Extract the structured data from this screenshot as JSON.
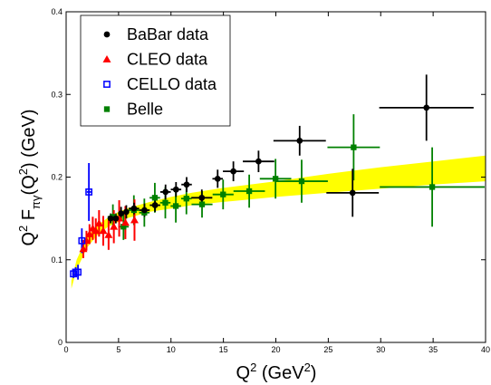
{
  "chart_data": {
    "type": "scatter",
    "xlabel": "Q2 (GeV2)",
    "ylabel": "Q2 Fπγ(Q2) (GeV)",
    "xlim": [
      0,
      40
    ],
    "ylim": [
      0,
      0.4
    ],
    "xticks": [
      "0",
      "5",
      "10",
      "15",
      "20",
      "25",
      "30",
      "35",
      "40"
    ],
    "yticks": [
      "0",
      "0.1",
      "0.2",
      "0.3",
      "0.4"
    ],
    "grid": false,
    "legend_position": "top-left",
    "band": {
      "color": "#ffff00",
      "x": [
        0.5,
        1,
        2,
        3,
        4,
        5,
        6,
        8,
        10,
        12,
        15,
        20,
        25,
        30,
        35,
        40
      ],
      "lower": [
        0.065,
        0.088,
        0.115,
        0.13,
        0.14,
        0.146,
        0.151,
        0.158,
        0.162,
        0.166,
        0.17,
        0.176,
        0.181,
        0.186,
        0.191,
        0.195
      ],
      "upper": [
        0.075,
        0.1,
        0.128,
        0.142,
        0.151,
        0.158,
        0.163,
        0.17,
        0.176,
        0.181,
        0.187,
        0.195,
        0.204,
        0.212,
        0.219,
        0.226
      ]
    },
    "series": [
      {
        "name": "BaBar data",
        "color": "#000000",
        "marker": "circle",
        "points": [
          {
            "x": 4.24,
            "y": 0.15,
            "xerr": 0.25,
            "yerr": 0.006
          },
          {
            "x": 4.74,
            "y": 0.15,
            "xerr": 0.25,
            "yerr": 0.006
          },
          {
            "x": 5.24,
            "y": 0.156,
            "xerr": 0.25,
            "yerr": 0.008
          },
          {
            "x": 5.74,
            "y": 0.158,
            "xerr": 0.25,
            "yerr": 0.008
          },
          {
            "x": 6.47,
            "y": 0.162,
            "xerr": 0.5,
            "yerr": 0.007
          },
          {
            "x": 7.47,
            "y": 0.16,
            "xerr": 0.5,
            "yerr": 0.008
          },
          {
            "x": 8.48,
            "y": 0.166,
            "xerr": 0.5,
            "yerr": 0.008
          },
          {
            "x": 9.48,
            "y": 0.182,
            "xerr": 0.5,
            "yerr": 0.009
          },
          {
            "x": 10.48,
            "y": 0.185,
            "xerr": 0.5,
            "yerr": 0.009
          },
          {
            "x": 11.49,
            "y": 0.191,
            "xerr": 0.5,
            "yerr": 0.009
          },
          {
            "x": 12.94,
            "y": 0.175,
            "xerr": 1.0,
            "yerr": 0.01
          },
          {
            "x": 14.45,
            "y": 0.198,
            "xerr": 0.5,
            "yerr": 0.011
          },
          {
            "x": 15.95,
            "y": 0.207,
            "xerr": 1.0,
            "yerr": 0.012
          },
          {
            "x": 18.35,
            "y": 0.219,
            "xerr": 1.5,
            "yerr": 0.013
          },
          {
            "x": 22.27,
            "y": 0.244,
            "xerr": 2.5,
            "yerr": 0.018
          },
          {
            "x": 27.32,
            "y": 0.181,
            "xerr": 2.5,
            "yerr": 0.029
          },
          {
            "x": 34.36,
            "y": 0.284,
            "xerr": 4.5,
            "yerr": 0.04
          }
        ]
      },
      {
        "name": "CLEO data",
        "color": "#ff0000",
        "marker": "triangle",
        "points": [
          {
            "x": 1.64,
            "y": 0.113,
            "xerr": 0.1,
            "yerr": 0.011
          },
          {
            "x": 1.94,
            "y": 0.123,
            "xerr": 0.1,
            "yerr": 0.012
          },
          {
            "x": 2.23,
            "y": 0.131,
            "xerr": 0.1,
            "yerr": 0.012
          },
          {
            "x": 2.54,
            "y": 0.138,
            "xerr": 0.1,
            "yerr": 0.014
          },
          {
            "x": 2.83,
            "y": 0.135,
            "xerr": 0.1,
            "yerr": 0.015
          },
          {
            "x": 3.14,
            "y": 0.144,
            "xerr": 0.1,
            "yerr": 0.016
          },
          {
            "x": 3.54,
            "y": 0.135,
            "xerr": 0.1,
            "yerr": 0.018
          },
          {
            "x": 4.05,
            "y": 0.13,
            "xerr": 0.1,
            "yerr": 0.018
          },
          {
            "x": 4.55,
            "y": 0.14,
            "xerr": 0.1,
            "yerr": 0.02
          },
          {
            "x": 5.06,
            "y": 0.15,
            "xerr": 0.1,
            "yerr": 0.022
          },
          {
            "x": 5.65,
            "y": 0.145,
            "xerr": 0.1,
            "yerr": 0.02
          },
          {
            "x": 6.52,
            "y": 0.148,
            "xerr": 0.1,
            "yerr": 0.025
          }
        ]
      },
      {
        "name": "CELLO data",
        "color": "#0000ff",
        "marker": "open-square",
        "points": [
          {
            "x": 0.7,
            "y": 0.083,
            "xerr": 0.05,
            "yerr": 0.005
          },
          {
            "x": 0.91,
            "y": 0.085,
            "xerr": 0.05,
            "yerr": 0.006
          },
          {
            "x": 1.13,
            "y": 0.085,
            "xerr": 0.05,
            "yerr": 0.009
          },
          {
            "x": 1.5,
            "y": 0.123,
            "xerr": 0.1,
            "yerr": 0.015
          },
          {
            "x": 2.17,
            "y": 0.182,
            "xerr": 0.2,
            "yerr": 0.035
          }
        ]
      },
      {
        "name": "Belle",
        "color": "#008000",
        "marker": "filled-square",
        "points": [
          {
            "x": 4.46,
            "y": 0.152,
            "xerr": 0.5,
            "yerr": 0.015
          },
          {
            "x": 5.47,
            "y": 0.14,
            "xerr": 0.5,
            "yerr": 0.016
          },
          {
            "x": 6.46,
            "y": 0.16,
            "xerr": 0.5,
            "yerr": 0.018
          },
          {
            "x": 7.46,
            "y": 0.157,
            "xerr": 0.5,
            "yerr": 0.017
          },
          {
            "x": 8.46,
            "y": 0.175,
            "xerr": 0.5,
            "yerr": 0.018
          },
          {
            "x": 9.46,
            "y": 0.169,
            "xerr": 0.5,
            "yerr": 0.019
          },
          {
            "x": 10.46,
            "y": 0.165,
            "xerr": 0.5,
            "yerr": 0.02
          },
          {
            "x": 11.47,
            "y": 0.174,
            "xerr": 0.5,
            "yerr": 0.019
          },
          {
            "x": 12.96,
            "y": 0.167,
            "xerr": 1.0,
            "yerr": 0.016
          },
          {
            "x": 14.97,
            "y": 0.179,
            "xerr": 1.0,
            "yerr": 0.018
          },
          {
            "x": 17.46,
            "y": 0.183,
            "xerr": 1.5,
            "yerr": 0.02
          },
          {
            "x": 19.97,
            "y": 0.198,
            "xerr": 1.5,
            "yerr": 0.024
          },
          {
            "x": 22.46,
            "y": 0.195,
            "xerr": 2.5,
            "yerr": 0.026
          },
          {
            "x": 27.42,
            "y": 0.236,
            "xerr": 2.5,
            "yerr": 0.04
          },
          {
            "x": 34.91,
            "y": 0.188,
            "xerr": 5.0,
            "yerr": 0.048
          }
        ]
      }
    ]
  }
}
